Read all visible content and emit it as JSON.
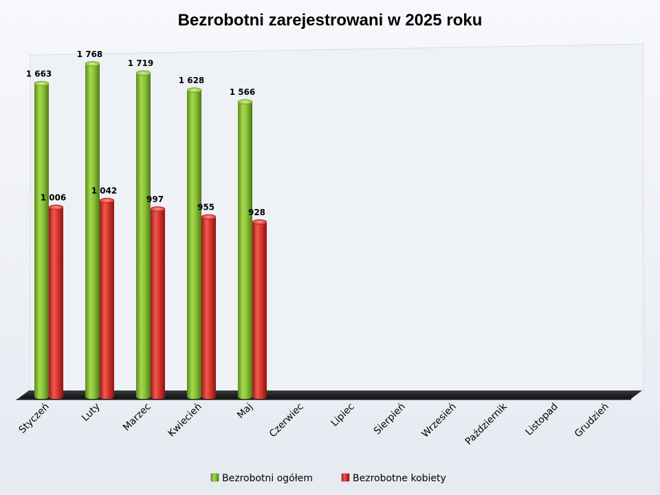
{
  "chart_data": {
    "type": "bar",
    "title": "Bezrobotni zarejestrowani w 2025 roku",
    "categories": [
      "Styczeń",
      "Luty",
      "Marzec",
      "Kwiecień",
      "Maj",
      "Czerwiec",
      "Lipiec",
      "Sierpień",
      "Wrzesień",
      "Październik",
      "Listopad",
      "Grudzień"
    ],
    "series": [
      {
        "name": "Bezrobotni ogółem",
        "color": "#8dc63f",
        "values": [
          1663,
          1768,
          1719,
          1628,
          1566,
          null,
          null,
          null,
          null,
          null,
          null,
          null
        ],
        "labels": [
          "1 663",
          "1 768",
          "1 719",
          "1 628",
          "1 566"
        ]
      },
      {
        "name": "Bezrobotne kobiety",
        "color": "#d9312b",
        "values": [
          1006,
          1042,
          997,
          955,
          928,
          null,
          null,
          null,
          null,
          null,
          null,
          null
        ],
        "labels": [
          "1 006",
          "1 042",
          "997",
          "955",
          "928"
        ]
      }
    ],
    "xlabel": "",
    "ylabel": "",
    "ylim": [
      0,
      1800
    ],
    "grid": false,
    "legend": "bottom",
    "style": "3d-cylinder"
  }
}
